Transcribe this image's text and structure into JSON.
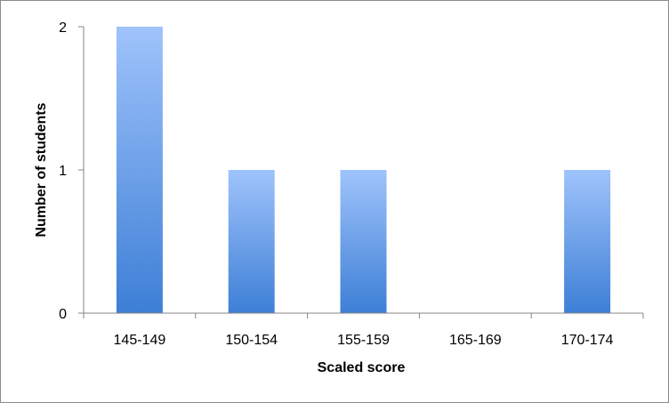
{
  "chart_data": {
    "type": "bar",
    "categories": [
      "145-149",
      "150-154",
      "155-159",
      "165-169",
      "170-174"
    ],
    "values": [
      2,
      1,
      1,
      0,
      1
    ],
    "xlabel": "Scaled score",
    "ylabel": "Number of students",
    "ylim": [
      0,
      2
    ],
    "yticks": [
      0,
      1,
      2
    ],
    "grid": false,
    "legend": "none",
    "colors": {
      "bar_top": "#9fc3fb",
      "bar_bottom": "#3d7fd6",
      "axis": "#868686",
      "frame": "#8c8c8c"
    }
  }
}
